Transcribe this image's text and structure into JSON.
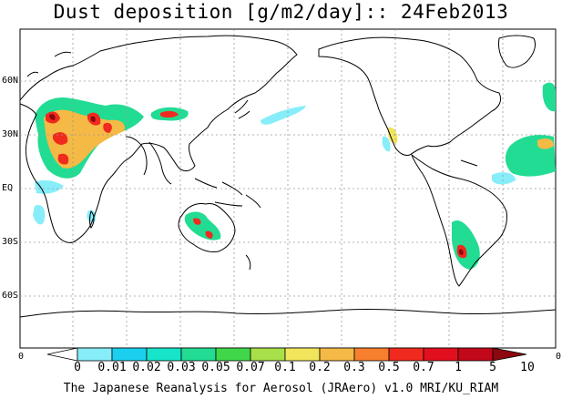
{
  "title": "Dust deposition [g/m2/day]:: 24Feb2013",
  "lat_labels": [
    "60N",
    "30N",
    "EQ",
    "30S",
    "60S"
  ],
  "lon_edge_labels": [
    "0",
    "0"
  ],
  "legend": {
    "labels": [
      "0",
      "0.01",
      "0.02",
      "0.03",
      "0.05",
      "0.07",
      "0.1",
      "0.2",
      "0.3",
      "0.5",
      "0.7",
      "1",
      "5",
      "10"
    ],
    "colors": [
      "#ffffff",
      "#87eef9",
      "#1ad0ee",
      "#16e5c9",
      "#22dc93",
      "#40d84a",
      "#a7e048",
      "#f2e55c",
      "#f5b945",
      "#f77f2e",
      "#f02a1e",
      "#e20f1e",
      "#c2091a",
      "#8c0710"
    ]
  },
  "footer": "The Japanese Reanalysis for Aerosol (JRAero) v1.0 MRI/KU_RIAM"
}
